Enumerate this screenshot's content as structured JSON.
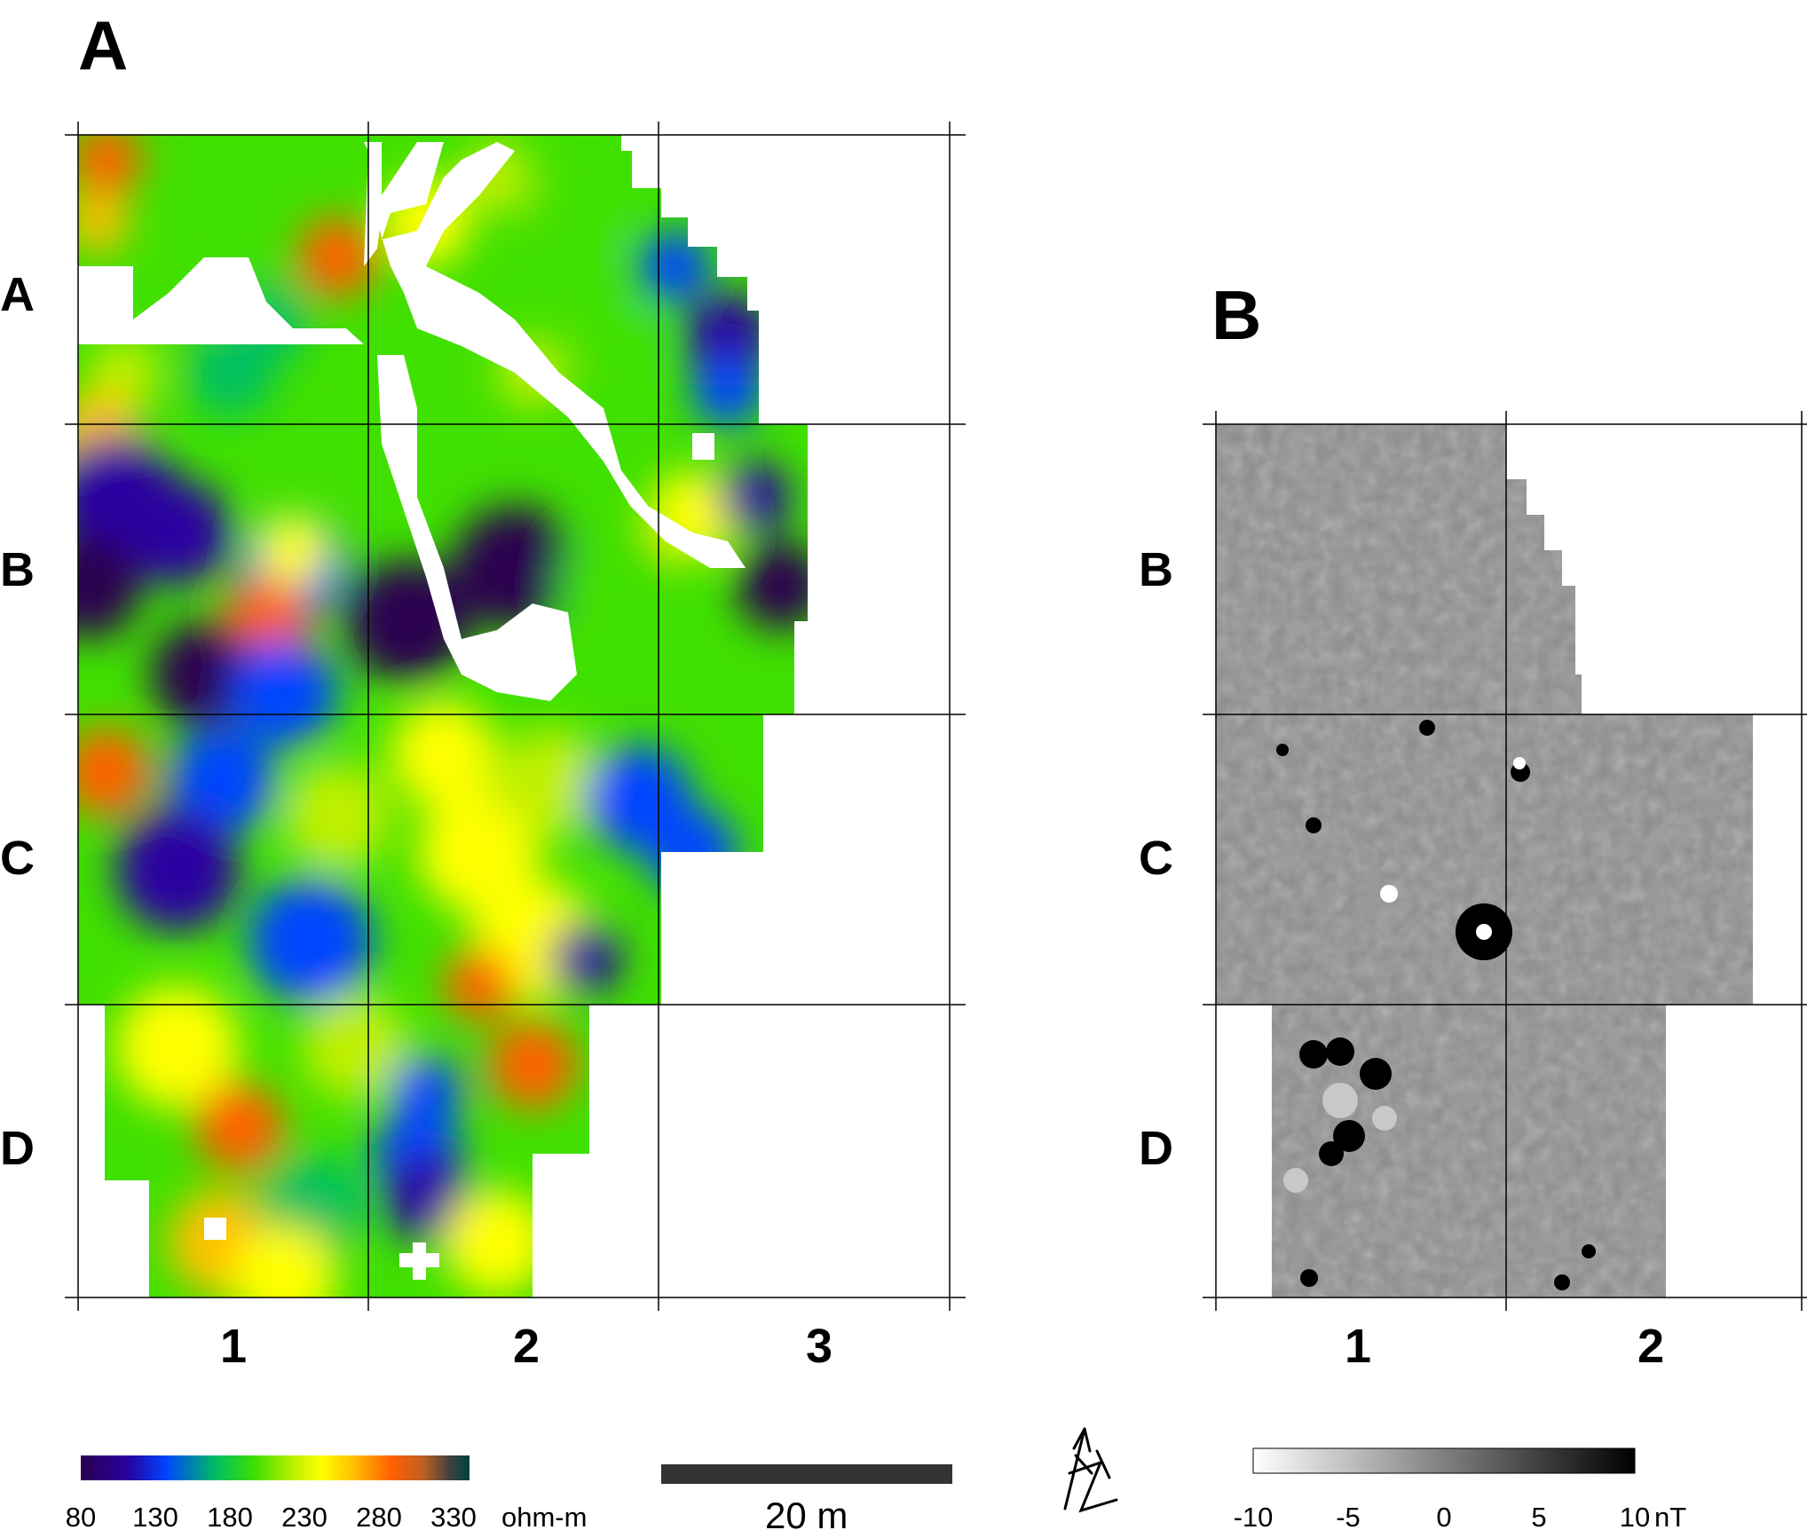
{
  "panels": {
    "a": {
      "label": "A",
      "rows": [
        "A",
        "B",
        "C",
        "D"
      ],
      "cols": [
        "1",
        "2",
        "3"
      ],
      "colorbar": {
        "ticks": [
          "80",
          "130",
          "180",
          "230",
          "280",
          "330"
        ],
        "unit": "ohm-m",
        "colors": [
          "#2a0050",
          "#2a00a0",
          "#0044ff",
          "#00c060",
          "#40e000",
          "#c0f000",
          "#ffff00",
          "#ffc000",
          "#ff6000",
          "#c06020",
          "#404040",
          "#004040"
        ]
      }
    },
    "b": {
      "label": "B",
      "rows": [
        "B",
        "C",
        "D"
      ],
      "cols": [
        "1",
        "2"
      ],
      "colorbar": {
        "ticks": [
          "-10",
          "-5",
          "0",
          "5",
          "10"
        ],
        "unit": "nT",
        "colors": [
          "#ffffff",
          "#000000"
        ]
      }
    }
  },
  "scalebar": {
    "label": "20 m"
  },
  "colors": {
    "grid": "#000000",
    "scalebar": "#333333",
    "mag_background": "#8a8a8a"
  }
}
